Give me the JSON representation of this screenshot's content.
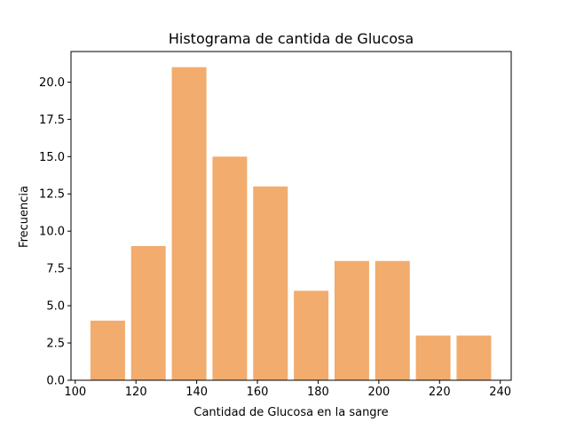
{
  "chart_data": {
    "type": "bar",
    "title": "Histograma de cantida de Glucosa",
    "xlabel": "Cantidad de Glucosa en la sangre",
    "ylabel": "Frecuencia",
    "bins": [
      {
        "start": 105.0,
        "end": 116.4,
        "value": 4
      },
      {
        "start": 118.4,
        "end": 129.8,
        "value": 9
      },
      {
        "start": 131.8,
        "end": 143.2,
        "value": 21
      },
      {
        "start": 145.2,
        "end": 156.6,
        "value": 15
      },
      {
        "start": 158.6,
        "end": 170.0,
        "value": 13
      },
      {
        "start": 172.0,
        "end": 183.4,
        "value": 6
      },
      {
        "start": 185.4,
        "end": 196.8,
        "value": 8
      },
      {
        "start": 198.8,
        "end": 210.2,
        "value": 8
      },
      {
        "start": 212.2,
        "end": 223.6,
        "value": 3
      },
      {
        "start": 225.6,
        "end": 237.0,
        "value": 3
      }
    ],
    "xlim": [
      98.6,
      243.6
    ],
    "ylim": [
      0,
      22.05
    ],
    "xticks": [
      100,
      120,
      140,
      160,
      180,
      200,
      220,
      240
    ],
    "yticks": [
      0.0,
      2.5,
      5.0,
      7.5,
      10.0,
      12.5,
      15.0,
      17.5,
      20.0
    ],
    "bar_color": "#f2ac6d",
    "grid": false,
    "legend": "none"
  }
}
